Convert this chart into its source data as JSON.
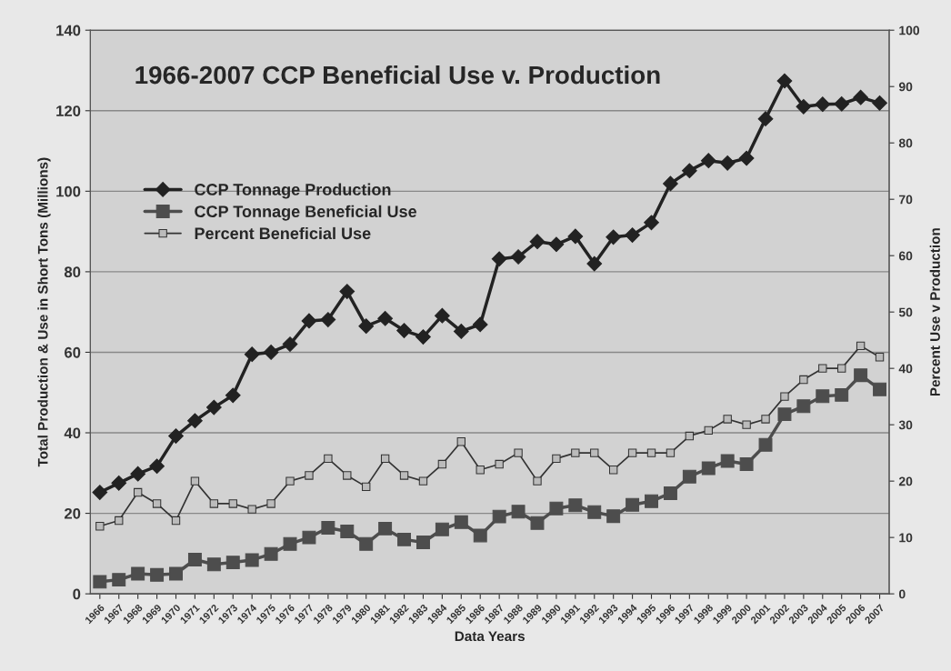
{
  "chart_data": {
    "type": "line",
    "title": "1966-2007 CCP Beneficial Use v. Production",
    "xlabel": "Data Years",
    "ylabel": "Total Production & Use in Short Tons (Millions)",
    "y2label": "Percent Use v Production",
    "categories": [
      "1966",
      "1967",
      "1968",
      "1969",
      "1970",
      "1971",
      "1972",
      "1973",
      "1974",
      "1975",
      "1976",
      "1977",
      "1978",
      "1979",
      "1980",
      "1981",
      "1982",
      "1983",
      "1984",
      "1985",
      "1986",
      "1987",
      "1988",
      "1989",
      "1990",
      "1991",
      "1992",
      "1993",
      "1994",
      "1995",
      "1996",
      "1997",
      "1998",
      "1999",
      "2000",
      "2001",
      "2002",
      "2003",
      "2004",
      "2005",
      "2006",
      "2007"
    ],
    "series": [
      {
        "name": "CCP Tonnage Production",
        "color": "#222222",
        "marker": "diamond",
        "values": [
          25.2,
          27.5,
          29.8,
          31.7,
          39.2,
          43,
          46.3,
          49.3,
          59.5,
          60,
          62,
          67.8,
          68.1,
          75.1,
          66.5,
          68.4,
          65.4,
          63.8,
          69.1,
          65.2,
          66.9,
          83.2,
          83.7,
          87.5,
          86.8,
          88.8,
          82,
          88.6,
          89.1,
          92.2,
          101.9,
          105.1,
          107.6,
          107,
          108.2,
          118,
          127.4,
          121,
          121.6,
          121.7,
          123.3,
          121.9
        ]
      },
      {
        "name": "CCP Tonnage Beneficial Use",
        "color": "#4d4d4d",
        "marker": "square",
        "values": [
          3,
          3.5,
          5,
          4.7,
          5,
          8.5,
          7.3,
          7.8,
          8.4,
          9.9,
          12.4,
          14,
          16.4,
          15.5,
          12.4,
          16.2,
          13.5,
          12.8,
          16,
          17.8,
          14.5,
          19.2,
          20.4,
          17.6,
          21.2,
          22,
          20.3,
          19.3,
          22.1,
          23,
          25,
          29.1,
          31.2,
          33,
          32.2,
          37,
          44.6,
          46.6,
          49.1,
          49.4,
          54.3,
          50.8
        ]
      },
      {
        "name": "Percent Beneficial Use",
        "color": "#333333",
        "marker": "square",
        "axis": "y2",
        "values": [
          12,
          13,
          18,
          16,
          13,
          20,
          16,
          16,
          15,
          16,
          20,
          21,
          24,
          21,
          19,
          24,
          21,
          20,
          23,
          27,
          22,
          23,
          25,
          20,
          24,
          25,
          25,
          22,
          25,
          25,
          25,
          28,
          29,
          31,
          30,
          31,
          35,
          38,
          40,
          40,
          44,
          42
        ]
      }
    ],
    "ylim": [
      0,
      140
    ],
    "yticks": [
      0,
      20,
      40,
      60,
      80,
      100,
      120,
      140
    ],
    "y2lim": [
      0,
      100
    ],
    "y2ticks": [
      0,
      10,
      20,
      30,
      40,
      50,
      60,
      70,
      80,
      90,
      100
    ],
    "grid": "y",
    "legend": "top left",
    "line_style": "solid"
  }
}
